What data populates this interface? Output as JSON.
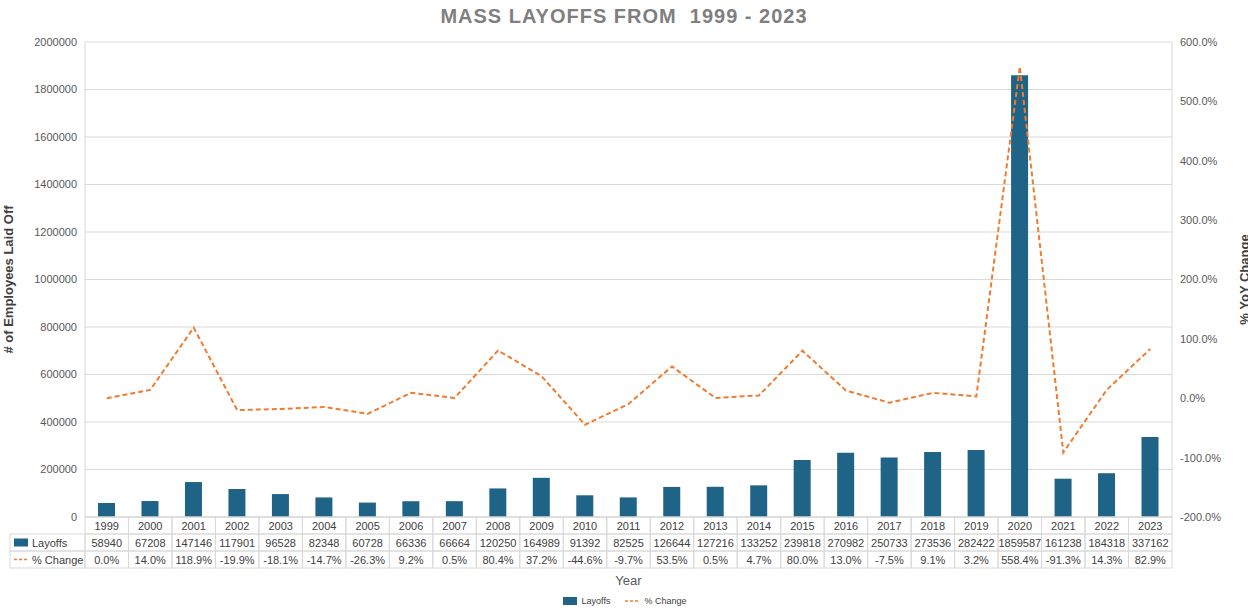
{
  "chart_data": {
    "type": "bar",
    "title": "MASS LAYOFFS FROM  1999 - 2023",
    "x_label": "Year",
    "y_label": "# of Employees Laid Off",
    "y2_label": "% YoY Change",
    "categories": [
      "1999",
      "2000",
      "2001",
      "2002",
      "2003",
      "2004",
      "2005",
      "2006",
      "2007",
      "2008",
      "2009",
      "2010",
      "2011",
      "2012",
      "2013",
      "2014",
      "2015",
      "2016",
      "2017",
      "2018",
      "2019",
      "2020",
      "2021",
      "2022",
      "2023"
    ],
    "series": [
      {
        "name": "Layoffs",
        "type": "bar",
        "color": "#1f6387",
        "values": [
          58940,
          67208,
          147146,
          117901,
          96528,
          82348,
          60728,
          66336,
          66664,
          120250,
          164989,
          91392,
          82525,
          126644,
          127216,
          133252,
          239818,
          270982,
          250733,
          273536,
          282422,
          1859587,
          161238,
          184318,
          337162
        ]
      },
      {
        "name": "% Change",
        "type": "line",
        "axis": "y2",
        "color": "#ed7d31",
        "line_style": "dashed",
        "values": [
          0.0,
          14.0,
          118.9,
          -19.9,
          -18.1,
          -14.7,
          -26.3,
          9.2,
          0.5,
          80.4,
          37.2,
          -44.6,
          -9.7,
          53.5,
          0.5,
          4.7,
          80.0,
          13.0,
          -7.5,
          9.1,
          3.2,
          558.4,
          -91.3,
          14.3,
          82.9
        ],
        "value_labels": [
          "0.0%",
          "14.0%",
          "118.9%",
          "-19.9%",
          "-18.1%",
          "-14.7%",
          "-26.3%",
          "9.2%",
          "0.5%",
          "80.4%",
          "37.2%",
          "-44.6%",
          "-9.7%",
          "53.5%",
          "0.5%",
          "4.7%",
          "80.0%",
          "13.0%",
          "-7.5%",
          "9.1%",
          "3.2%",
          "558.4%",
          "-91.3%",
          "14.3%",
          "82.9%"
        ]
      }
    ],
    "ylim": [
      0,
      2000000
    ],
    "yticks": [
      0,
      200000,
      400000,
      600000,
      800000,
      1000000,
      1200000,
      1400000,
      1600000,
      1800000,
      2000000
    ],
    "y2lim": [
      -200,
      600
    ],
    "y2ticks": [
      {
        "value": -200,
        "label": "-200.0%"
      },
      {
        "value": -100,
        "label": "-100.0%"
      },
      {
        "value": 0,
        "label": "0.0%"
      },
      {
        "value": 100,
        "label": "100.0%"
      },
      {
        "value": 200,
        "label": "200.0%"
      },
      {
        "value": 300,
        "label": "300.0%"
      },
      {
        "value": 400,
        "label": "400.0%"
      },
      {
        "value": 500,
        "label": "500.0%"
      },
      {
        "value": 600,
        "label": "600.0%"
      }
    ],
    "grid": true,
    "legend": "bottom"
  }
}
